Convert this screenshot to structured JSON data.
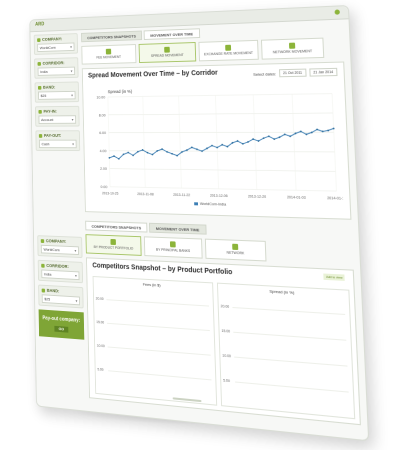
{
  "app": {
    "logo": "ARD",
    "status_color": "#8cb43a"
  },
  "sidebar1": [
    {
      "label": "COMPANY:",
      "value": "WorldCom"
    },
    {
      "label": "CORRIDOR:",
      "value": "India"
    },
    {
      "label": "BAND:",
      "value": "$25"
    },
    {
      "label": "PAY-IN:",
      "value": "Account"
    },
    {
      "label": "PAY-OUT:",
      "value": "Cash"
    }
  ],
  "tabs1": [
    "COMPETITORS SNAPSHOTS",
    "MOVEMENT OVER TIME"
  ],
  "subtabs1": [
    "FEE MOVEMENT",
    "SPREAD MOVEMENT",
    "EXCHANGE RATE MOVEMENT",
    "NETWORK MOVEMENT"
  ],
  "panel1": {
    "title": "Spread Movement Over Time – by Corridor",
    "select_dates_label": "Select dates:",
    "date_from": "21 Oct 2011",
    "date_to": "21 Jan 2014"
  },
  "chart_data": {
    "type": "line",
    "title": "",
    "ylabel": "Spread (in %)",
    "xlabel": "",
    "ylim": [
      0,
      10
    ],
    "yticks": [
      "10.00",
      "8.00",
      "6.00",
      "4.00",
      "2.00",
      "0.00"
    ],
    "xticks": [
      "2013-10-25",
      "2013-11-08",
      "2013-11-22",
      "2013-12-06",
      "2013-12-20",
      "2014-01-03",
      "2014-01-17"
    ],
    "series": [
      {
        "name": "WorldCom-India",
        "x": [
          "2013-10-25",
          "2013-10-27",
          "2013-10-29",
          "2013-10-31",
          "2013-11-02",
          "2013-11-04",
          "2013-11-06",
          "2013-11-08",
          "2013-11-10",
          "2013-11-12",
          "2013-11-14",
          "2013-11-16",
          "2013-11-18",
          "2013-11-20",
          "2013-11-22",
          "2013-11-24",
          "2013-11-26",
          "2013-11-28",
          "2013-11-30",
          "2013-12-02",
          "2013-12-04",
          "2013-12-06",
          "2013-12-08",
          "2013-12-10",
          "2013-12-12",
          "2013-12-14",
          "2013-12-16",
          "2013-12-18",
          "2013-12-20",
          "2013-12-22",
          "2013-12-24",
          "2013-12-26",
          "2013-12-28",
          "2013-12-30",
          "2014-01-01",
          "2014-01-03",
          "2014-01-05",
          "2014-01-07",
          "2014-01-09",
          "2014-01-11",
          "2014-01-13",
          "2014-01-15",
          "2014-01-17",
          "2014-01-19",
          "2014-01-21"
        ],
        "values": [
          3.2,
          3.4,
          3.1,
          3.6,
          3.8,
          3.5,
          3.9,
          4.1,
          3.8,
          3.6,
          4.0,
          4.2,
          3.9,
          3.7,
          3.5,
          3.9,
          4.1,
          4.4,
          4.2,
          4.0,
          4.3,
          4.6,
          4.4,
          4.7,
          4.5,
          4.9,
          5.1,
          4.8,
          5.0,
          5.3,
          5.1,
          5.4,
          5.6,
          5.3,
          5.5,
          5.8,
          5.6,
          5.9,
          6.1,
          5.8,
          6.0,
          6.3,
          6.1,
          6.2,
          6.4
        ]
      }
    ],
    "legend": "bottom",
    "grid": true
  },
  "sidebar2": [
    {
      "label": "COMPANY:",
      "value": "WorldCom"
    },
    {
      "label": "CORRIDOR:",
      "value": "India"
    },
    {
      "label": "BAND:",
      "value": "$25"
    }
  ],
  "payout": {
    "text": "Pay-out company:",
    "button": "GO"
  },
  "tabs2": [
    "COMPETITORS SNAPSHOTS",
    "MOVEMENT OVER TIME"
  ],
  "subtabs2": [
    "BY PRODUCT PORTFOLIO",
    "BY PRINCIPAL BANKS",
    "NETWORK"
  ],
  "panel2": {
    "title": "Competitors Snapshot – by Product Portfolio",
    "badge": "Add to view",
    "left_chart_title": "Fees (in $)",
    "right_chart_title": "Spread (in %)",
    "left_yticks": [
      "20.00",
      "15.00",
      "10.00",
      "5.00"
    ],
    "right_yticks": [
      "20.00",
      "15.00",
      "10.00",
      "5.00"
    ]
  }
}
